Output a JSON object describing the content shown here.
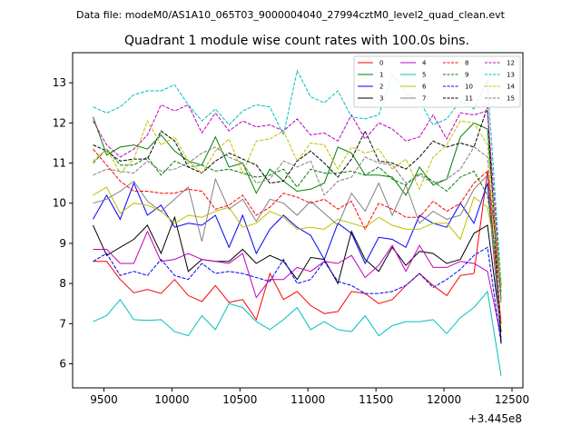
{
  "suptitle": "Data file: modeM0/AS1A10_065T03_9000004040_27994cztM0_level2_quad_clean.evt",
  "chart_data": {
    "type": "line",
    "title": "Quadrant 1 module wise count rates with 100.0s bins.",
    "xlabel": "",
    "ylabel": "",
    "x_offset_label": "+3.445e8",
    "x_offset": 344500000,
    "xlim": [
      9270,
      12580
    ],
    "ylim": [
      5.4,
      13.75
    ],
    "xticks": [
      9500,
      10000,
      10500,
      11000,
      11500,
      12000,
      12500
    ],
    "xtick_labels": [
      "9500",
      "10000",
      "10500",
      "11000",
      "11500",
      "12000",
      "12500"
    ],
    "yticks": [
      6,
      7,
      8,
      9,
      10,
      11,
      12,
      13
    ],
    "ytick_labels": [
      "6",
      "7",
      "8",
      "9",
      "10",
      "11",
      "12",
      "13"
    ],
    "legend_loc": "top-right",
    "x": [
      9420,
      9520,
      9620,
      9720,
      9820,
      9920,
      10020,
      10120,
      10220,
      10320,
      10420,
      10520,
      10620,
      10720,
      10820,
      10920,
      11020,
      11120,
      11220,
      11320,
      11420,
      11520,
      11620,
      11720,
      11820,
      11920,
      12020,
      12120,
      12220,
      12320,
      12420
    ],
    "series": [
      {
        "name": "0",
        "color": "#ff0000",
        "dash": "solid",
        "values": [
          8.55,
          8.55,
          8.1,
          7.77,
          7.85,
          7.75,
          8.1,
          7.7,
          7.55,
          7.95,
          7.53,
          7.6,
          7.1,
          8.25,
          7.6,
          7.8,
          7.45,
          7.25,
          7.3,
          7.8,
          7.75,
          7.5,
          7.6,
          7.95,
          8.25,
          7.95,
          7.7,
          8.2,
          8.25,
          10.8,
          7.0
        ]
      },
      {
        "name": "1",
        "color": "#008000",
        "dash": "solid",
        "values": [
          12.15,
          11.2,
          11.4,
          11.45,
          11.35,
          11.7,
          11.3,
          11.05,
          10.95,
          11.65,
          10.9,
          11.0,
          10.25,
          10.85,
          10.55,
          10.3,
          10.35,
          10.5,
          11.4,
          11.25,
          10.7,
          10.7,
          10.65,
          10.2,
          10.9,
          10.45,
          10.6,
          11.65,
          12.0,
          11.85,
          7.6
        ]
      },
      {
        "name": "2",
        "color": "#0000ff",
        "dash": "solid",
        "values": [
          9.6,
          10.2,
          9.6,
          10.5,
          9.7,
          9.95,
          9.4,
          9.5,
          9.45,
          9.7,
          8.9,
          9.7,
          8.75,
          9.35,
          9.7,
          9.4,
          9.2,
          8.6,
          9.5,
          9.25,
          8.5,
          9.15,
          9.1,
          8.9,
          9.7,
          9.5,
          9.4,
          10.0,
          9.5,
          10.5,
          6.6
        ]
      },
      {
        "name": "3",
        "color": "#000000",
        "dash": "solid",
        "values": [
          9.45,
          8.7,
          8.9,
          9.1,
          9.45,
          8.75,
          9.65,
          8.3,
          8.6,
          8.55,
          8.55,
          8.85,
          8.5,
          8.7,
          8.55,
          8.1,
          8.65,
          8.6,
          8.0,
          9.3,
          8.6,
          8.3,
          8.9,
          8.45,
          8.8,
          8.75,
          8.5,
          8.6,
          9.25,
          9.45,
          6.8
        ]
      },
      {
        "name": "4",
        "color": "#bf00bf",
        "dash": "solid",
        "values": [
          8.85,
          8.85,
          8.5,
          8.5,
          9.3,
          8.55,
          8.6,
          8.75,
          8.6,
          8.55,
          8.5,
          8.75,
          7.65,
          8.1,
          8.1,
          8.4,
          8.3,
          8.55,
          8.5,
          8.7,
          8.15,
          8.45,
          8.95,
          8.3,
          8.95,
          8.4,
          8.4,
          8.55,
          8.5,
          8.3,
          6.65
        ]
      },
      {
        "name": "5",
        "color": "#00bfbf",
        "dash": "solid",
        "values": [
          7.05,
          7.2,
          7.6,
          7.1,
          7.08,
          7.1,
          6.8,
          6.7,
          7.2,
          6.85,
          7.5,
          7.4,
          7.05,
          6.85,
          7.1,
          7.4,
          6.85,
          7.05,
          6.85,
          6.8,
          7.2,
          6.7,
          6.95,
          7.05,
          7.05,
          7.1,
          6.75,
          7.15,
          7.4,
          7.8,
          5.7
        ]
      },
      {
        "name": "6",
        "color": "#bfbf00",
        "dash": "solid",
        "values": [
          10.2,
          10.4,
          9.75,
          10.0,
          9.95,
          9.8,
          9.5,
          9.7,
          9.65,
          9.8,
          9.9,
          9.4,
          9.5,
          9.8,
          9.65,
          9.35,
          9.4,
          9.35,
          9.6,
          9.5,
          9.4,
          9.65,
          9.45,
          9.35,
          9.35,
          9.5,
          9.5,
          9.1,
          10.15,
          9.9,
          8.0
        ]
      },
      {
        "name": "7",
        "color": "#808080",
        "dash": "solid",
        "values": [
          10.0,
          10.1,
          10.3,
          10.55,
          10.05,
          9.8,
          10.1,
          10.4,
          9.05,
          10.6,
          9.85,
          10.1,
          9.55,
          10.1,
          10.0,
          9.7,
          10.05,
          9.75,
          9.45,
          10.25,
          9.8,
          10.5,
          9.7,
          10.45,
          9.5,
          9.8,
          9.6,
          9.7,
          10.35,
          10.7,
          6.5
        ]
      },
      {
        "name": "8",
        "color": "#ff0000",
        "dash": "dashed",
        "values": [
          11.35,
          10.95,
          10.55,
          10.3,
          10.3,
          10.25,
          10.25,
          10.35,
          10.3,
          9.85,
          9.95,
          10.2,
          9.7,
          9.9,
          10.25,
          10.15,
          10.0,
          10.1,
          9.85,
          10.05,
          9.35,
          10.0,
          9.85,
          9.65,
          9.65,
          10.05,
          9.8,
          10.0,
          10.5,
          10.8,
          7.95
        ]
      },
      {
        "name": "9",
        "color": "#008000",
        "dash": "dashed",
        "values": [
          11.0,
          11.35,
          10.95,
          10.95,
          11.15,
          10.7,
          11.05,
          10.9,
          10.95,
          10.8,
          10.85,
          10.75,
          10.65,
          10.7,
          10.85,
          10.4,
          10.85,
          10.75,
          10.75,
          10.8,
          10.7,
          10.9,
          10.6,
          10.45,
          10.75,
          10.55,
          10.3,
          10.65,
          10.8,
          10.2,
          7.8
        ]
      },
      {
        "name": "10",
        "color": "#0000ff",
        "dash": "dashed",
        "values": [
          8.55,
          8.75,
          8.2,
          8.3,
          8.2,
          8.6,
          8.2,
          8.1,
          8.5,
          8.25,
          8.3,
          8.25,
          8.15,
          8.05,
          8.6,
          8.0,
          8.1,
          8.55,
          8.05,
          7.95,
          7.75,
          7.75,
          7.8,
          7.95,
          8.25,
          7.9,
          8.1,
          8.35,
          8.7,
          8.9,
          6.5
        ]
      },
      {
        "name": "11",
        "color": "#000000",
        "dash": "dashed",
        "values": [
          11.45,
          11.3,
          11.05,
          11.1,
          11.1,
          11.8,
          11.55,
          10.9,
          10.75,
          11.05,
          11.25,
          11.1,
          10.95,
          10.5,
          10.55,
          11.05,
          11.3,
          11.0,
          10.65,
          11.1,
          11.8,
          11.05,
          11.0,
          10.85,
          11.15,
          11.55,
          11.4,
          11.5,
          11.4,
          12.4,
          6.5
        ]
      },
      {
        "name": "12",
        "color": "#bf00bf",
        "dash": "dashed",
        "values": [
          12.05,
          11.45,
          11.15,
          11.35,
          11.7,
          12.45,
          12.3,
          12.45,
          11.75,
          12.25,
          11.8,
          12.05,
          11.9,
          11.95,
          11.8,
          12.1,
          11.7,
          11.75,
          11.55,
          12.2,
          11.6,
          12.0,
          11.85,
          11.55,
          11.65,
          12.2,
          11.6,
          12.25,
          12.2,
          12.3,
          7.9
        ]
      },
      {
        "name": "13",
        "color": "#00bfbf",
        "dash": "dashed",
        "values": [
          12.4,
          12.25,
          12.4,
          12.7,
          12.8,
          12.8,
          12.95,
          12.45,
          12.05,
          12.35,
          11.95,
          12.3,
          12.45,
          12.4,
          11.7,
          13.3,
          12.65,
          12.5,
          12.8,
          12.15,
          12.1,
          12.2,
          13.2,
          12.75,
          12.55,
          11.95,
          12.1,
          12.55,
          12.35,
          13.05,
          8.0
        ]
      },
      {
        "name": "14",
        "color": "#bfbf00",
        "dash": "dashed",
        "values": [
          11.05,
          11.35,
          10.75,
          11.1,
          12.05,
          11.45,
          11.65,
          11.05,
          10.75,
          11.3,
          11.6,
          10.75,
          11.55,
          11.6,
          11.8,
          11.05,
          11.5,
          11.45,
          10.85,
          11.4,
          11.25,
          11.35,
          10.85,
          11.1,
          10.35,
          11.15,
          11.45,
          12.05,
          12.0,
          11.45,
          7.9
        ]
      },
      {
        "name": "15",
        "color": "#808080",
        "dash": "dashed",
        "values": [
          10.7,
          10.85,
          10.8,
          10.75,
          11.05,
          10.8,
          10.85,
          11.0,
          11.25,
          11.4,
          11.15,
          11.0,
          10.5,
          10.6,
          11.05,
          10.9,
          11.05,
          10.2,
          10.55,
          10.65,
          11.15,
          11.0,
          10.95,
          10.5,
          10.7,
          10.5,
          10.6,
          10.85,
          11.4,
          11.15,
          7.5
        ]
      }
    ]
  }
}
